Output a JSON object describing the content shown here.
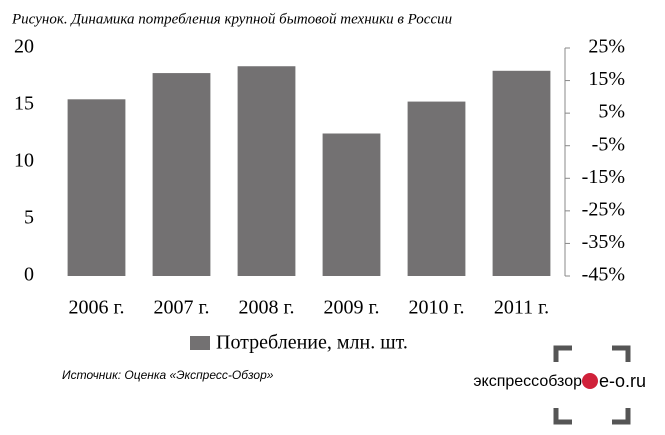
{
  "chart_data": {
    "type": "bar",
    "title": "Рисунок. Динамика потребления крупной бытовой техники в  России",
    "categories": [
      "2006 г.",
      "2007 г.",
      "2008 г.",
      "2009 г.",
      "2010 г.",
      "2011 г."
    ],
    "series": [
      {
        "name": "Потребление, млн. шт.",
        "color": "#737172",
        "values": [
          15.5,
          17.8,
          18.4,
          12.5,
          15.3,
          18.0
        ]
      }
    ],
    "ylim": [
      0,
      20
    ],
    "yticks": [
      0,
      5,
      10,
      15,
      20
    ],
    "y2lim": [
      -45,
      25
    ],
    "y2ticks": [
      {
        "value": -45,
        "label": "-45%"
      },
      {
        "value": -35,
        "label": "-35%"
      },
      {
        "value": -25,
        "label": "-25%"
      },
      {
        "value": -15,
        "label": "-15%"
      },
      {
        "value": -5,
        "label": "-5%"
      },
      {
        "value": 5,
        "label": "5%"
      },
      {
        "value": 15,
        "label": "15%"
      },
      {
        "value": 25,
        "label": "25%"
      }
    ],
    "legend": "bottom",
    "source": "Источник: Оценка «Экспресс-Обзор»",
    "logo": {
      "name": "экспрессобзор",
      "site": "e-o.ru"
    }
  }
}
